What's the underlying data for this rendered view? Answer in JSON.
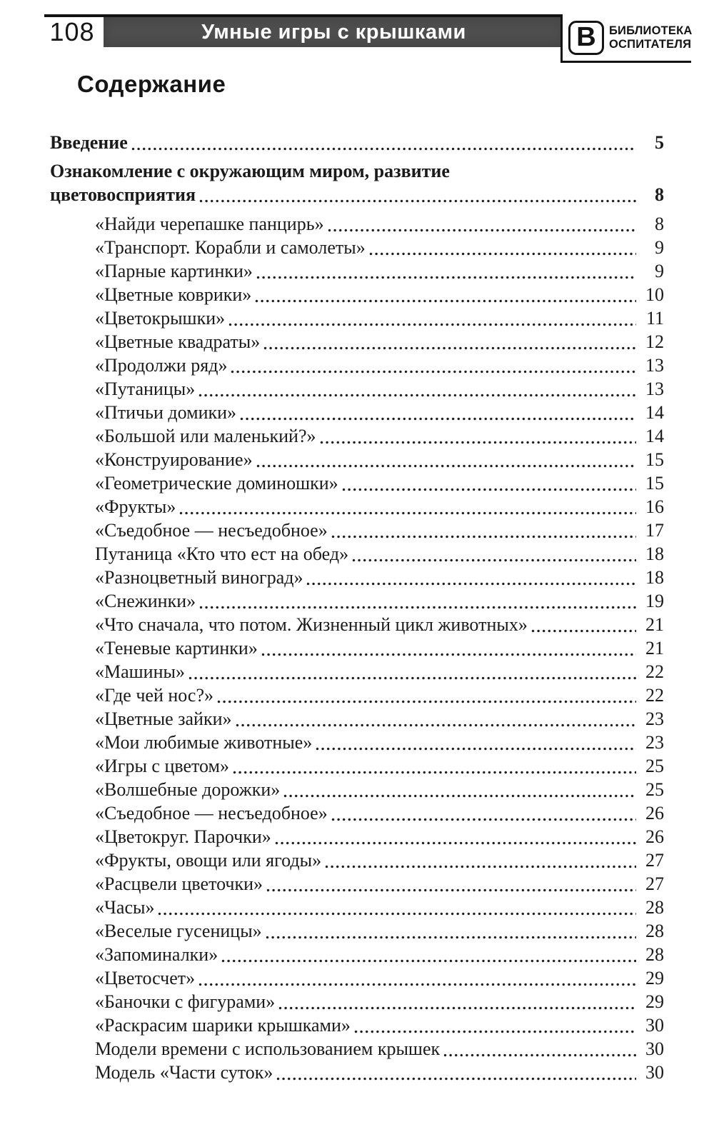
{
  "page": {
    "number": "108",
    "running_title": "Умные игры с крышками",
    "logo": {
      "letter": "В",
      "line1": "БИБЛИОТЕКА",
      "line2": "ОСПИТАТЕЛЯ"
    },
    "heading": "Содержание"
  },
  "colors": {
    "header_bar": "#4e4e4e",
    "ink": "#1b1b1b"
  },
  "toc": {
    "entries": [
      {
        "title": "Введение",
        "page": "5",
        "level": 0,
        "bold": true
      },
      {
        "pre_line": "Ознакомление с окружающим миром, развитие",
        "title": "цветовосприятия",
        "page": "8",
        "level": 0,
        "bold": true,
        "section": true
      },
      {
        "title": "«Найди черепашке панцирь»",
        "page": "8",
        "level": 1
      },
      {
        "title": "«Транспорт. Корабли и самолеты»",
        "page": "9",
        "level": 1
      },
      {
        "title": "«Парные картинки»",
        "page": "9",
        "level": 1
      },
      {
        "title": "«Цветные коврики»",
        "page": "10",
        "level": 1
      },
      {
        "title": "«Цветокрышки»",
        "page": "11",
        "level": 1
      },
      {
        "title": "«Цветные квадраты»",
        "page": "12",
        "level": 1
      },
      {
        "title": "«Продолжи ряд»",
        "page": "13",
        "level": 1
      },
      {
        "title": "«Путаницы»",
        "page": "13",
        "level": 1
      },
      {
        "title": "«Птичьи домики»",
        "page": "14",
        "level": 1
      },
      {
        "title": "«Большой или маленький?»",
        "page": "14",
        "level": 1
      },
      {
        "title": "«Конструирование»",
        "page": "15",
        "level": 1
      },
      {
        "title": "«Геометрические доминошки»",
        "page": "15",
        "level": 1
      },
      {
        "title": "«Фрукты»",
        "page": "16",
        "level": 1
      },
      {
        "title": "«Съедобное — несъедобное»",
        "page": "17",
        "level": 1
      },
      {
        "title": "Путаница «Кто что ест на обед»",
        "page": "18",
        "level": 1
      },
      {
        "title": "«Разноцветный виноград»",
        "page": "18",
        "level": 1
      },
      {
        "title": "«Снежинки»",
        "page": "19",
        "level": 1
      },
      {
        "title": "«Что сначала, что потом. Жизненный цикл животных»",
        "page": "21",
        "level": 1
      },
      {
        "title": "«Теневые картинки»",
        "page": "21",
        "level": 1
      },
      {
        "title": "«Машины»",
        "page": "22",
        "level": 1
      },
      {
        "title": "«Где чей нос?»",
        "page": "22",
        "level": 1
      },
      {
        "title": "«Цветные зайки»",
        "page": "23",
        "level": 1
      },
      {
        "title": "«Мои любимые животные»",
        "page": "23",
        "level": 1
      },
      {
        "title": "«Игры с цветом»",
        "page": "25",
        "level": 1
      },
      {
        "title": "«Волшебные дорожки»",
        "page": "25",
        "level": 1
      },
      {
        "title": "«Съедобное — несъедобное»",
        "page": "26",
        "level": 1
      },
      {
        "title": "«Цветокруг. Парочки»",
        "page": "26",
        "level": 1
      },
      {
        "title": "«Фрукты, овощи или ягоды»",
        "page": "27",
        "level": 1
      },
      {
        "title": "«Расцвели цветочки»",
        "page": "27",
        "level": 1
      },
      {
        "title": "«Часы»",
        "page": "28",
        "level": 1
      },
      {
        "title": "«Веселые гусеницы»",
        "page": "28",
        "level": 1
      },
      {
        "title": "«Запоминалки»",
        "page": "28",
        "level": 1
      },
      {
        "title": "«Цветосчет»",
        "page": "29",
        "level": 1
      },
      {
        "title": "«Баночки с фигурами»",
        "page": "29",
        "level": 1
      },
      {
        "title": "«Раскрасим шарики крышками»",
        "page": "30",
        "level": 1
      },
      {
        "title": "Модели времени с использованием крышек",
        "page": "30",
        "level": 1
      },
      {
        "title": "Модель «Части суток»",
        "page": "30",
        "level": 1
      }
    ]
  }
}
